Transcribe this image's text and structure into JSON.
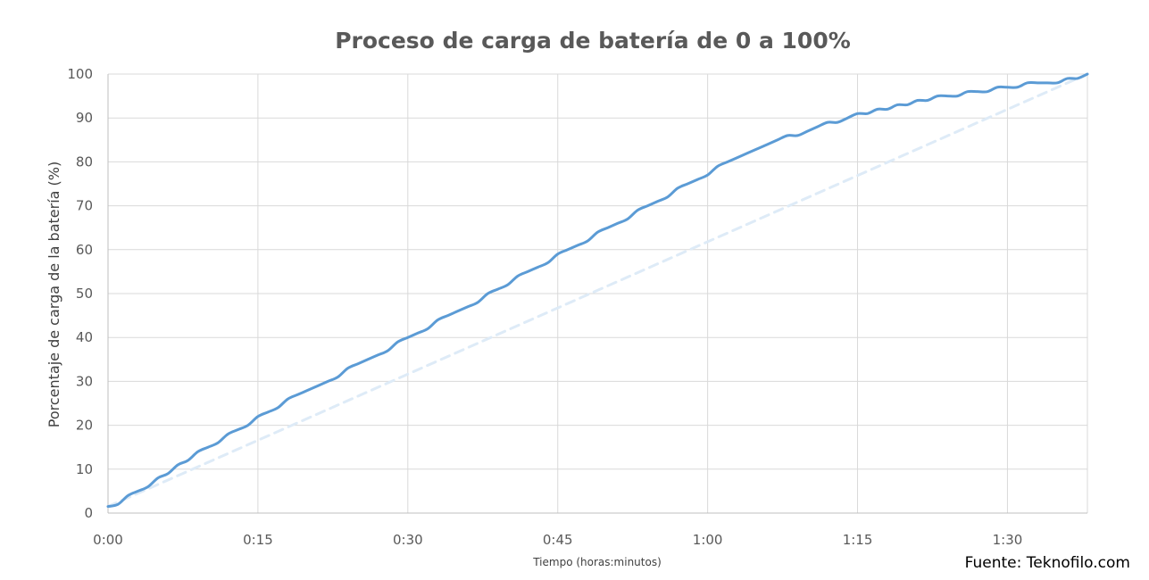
{
  "chart_data": {
    "type": "line",
    "title": "Proceso de carga de batería de 0 a 100%",
    "xlabel": "Tiempo (horas:minutos)",
    "ylabel": "Porcentaje de carga de la batería (%)",
    "x_unit": "minutes",
    "xlim": [
      0,
      98
    ],
    "ylim": [
      0,
      100
    ],
    "x_ticks": [
      {
        "value": 0,
        "label": "0:00"
      },
      {
        "value": 15,
        "label": "0:15"
      },
      {
        "value": 30,
        "label": "0:30"
      },
      {
        "value": 45,
        "label": "0:45"
      },
      {
        "value": 60,
        "label": "1:00"
      },
      {
        "value": 75,
        "label": "1:15"
      },
      {
        "value": 90,
        "label": "1:30"
      }
    ],
    "y_ticks": [
      {
        "value": 0,
        "label": "0"
      },
      {
        "value": 10,
        "label": "10"
      },
      {
        "value": 20,
        "label": "20"
      },
      {
        "value": 30,
        "label": "30"
      },
      {
        "value": 40,
        "label": "40"
      },
      {
        "value": 50,
        "label": "50"
      },
      {
        "value": 60,
        "label": "60"
      },
      {
        "value": 70,
        "label": "70"
      },
      {
        "value": 80,
        "label": "80"
      },
      {
        "value": 90,
        "label": "90"
      },
      {
        "value": 100,
        "label": "100"
      }
    ],
    "grid": true,
    "legend": "none",
    "series": [
      {
        "style": "solid",
        "color": "#5b9bd5",
        "x": [
          0,
          1,
          2,
          3,
          4,
          5,
          6,
          7,
          8,
          9,
          10,
          11,
          12,
          13,
          14,
          15,
          16,
          17,
          18,
          19,
          20,
          21,
          22,
          23,
          24,
          25,
          26,
          27,
          28,
          29,
          30,
          31,
          32,
          33,
          34,
          35,
          36,
          37,
          38,
          39,
          40,
          41,
          42,
          43,
          44,
          45,
          46,
          47,
          48,
          49,
          50,
          51,
          52,
          53,
          54,
          55,
          56,
          57,
          58,
          59,
          60,
          61,
          62,
          63,
          64,
          65,
          66,
          67,
          68,
          69,
          70,
          71,
          72,
          73,
          74,
          75,
          76,
          77,
          78,
          79,
          80,
          81,
          82,
          83,
          84,
          85,
          86,
          87,
          88,
          89,
          90,
          91,
          92,
          93,
          94,
          95,
          96,
          97,
          98
        ],
        "y": [
          1.5,
          2,
          4,
          5,
          6,
          8,
          9,
          11,
          12,
          14,
          15,
          16,
          18,
          19,
          20,
          22,
          23,
          24,
          26,
          27,
          28,
          29,
          30,
          31,
          33,
          34,
          35,
          36,
          37,
          39,
          40,
          41,
          42,
          44,
          45,
          46,
          47,
          48,
          50,
          51,
          52,
          54,
          55,
          56,
          57,
          59,
          60,
          61,
          62,
          64,
          65,
          66,
          67,
          69,
          70,
          71,
          72,
          74,
          75,
          76,
          77,
          79,
          80,
          81,
          82,
          83,
          84,
          85,
          86,
          86,
          87,
          88,
          89,
          89,
          90,
          91,
          91,
          92,
          92,
          93,
          93,
          94,
          94,
          95,
          95,
          95,
          96,
          96,
          96,
          97,
          97,
          97,
          98,
          98,
          98,
          98,
          99,
          99,
          100
        ]
      },
      {
        "style": "dashed",
        "color": "#deebf7",
        "x": [
          0,
          98
        ],
        "y": [
          1.5,
          100
        ]
      }
    ]
  },
  "source_label": "Fuente: Teknofilo.com"
}
